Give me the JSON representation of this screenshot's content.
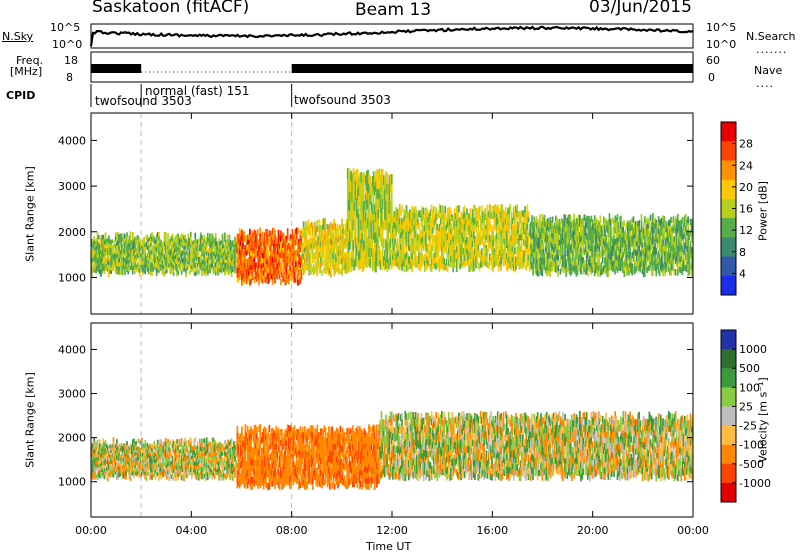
{
  "header": {
    "station": "Saskatoon (fitACF)",
    "beam": "Beam 13",
    "date": "03/Jun/2015"
  },
  "summary_panel": {
    "nsky_label": "N.Sky",
    "nsky_ticks": [
      "10^5",
      "10^0"
    ],
    "nsearch_label": "N.Search",
    "nsearch_ticks": [
      "10^5",
      "10^0"
    ],
    "freq_label_line1": "Freq.",
    "freq_label_line2": "[MHz]",
    "freq_ticks": [
      "18",
      "8"
    ],
    "nave_label": "Nave",
    "nave_ticks": [
      "60",
      "0"
    ],
    "cpid_label": "CPID",
    "cpid_segments": [
      {
        "name": "twofsound 3503",
        "start_hour": 0,
        "end_hour": 2
      },
      {
        "name": "normal (fast) 151",
        "start_hour": 2,
        "end_hour": 8
      },
      {
        "name": "twofsound 3503",
        "start_hour": 8,
        "end_hour": 24
      }
    ]
  },
  "power_panel": {
    "ylabel": "Slant Range [km]",
    "colorbar_label": "Power [dB]",
    "colorbar_ticks": [
      "28",
      "24",
      "20",
      "16",
      "12",
      "8",
      "4"
    ],
    "colorbar_colors": [
      "#e80000",
      "#ff4400",
      "#ff9000",
      "#ffc800",
      "#b8d01c",
      "#58ae46",
      "#3c8a6e",
      "#2e5aa8",
      "#1a2ee8"
    ]
  },
  "velocity_panel": {
    "ylabel": "Slant Range [km]",
    "colorbar_label": "Velocity [m s⁻¹]",
    "colorbar_ticks": [
      "1000",
      "500",
      "100",
      "25",
      "-25",
      "-100",
      "-500",
      "-1000"
    ],
    "colorbar_colors": [
      "#2233aa",
      "#2e6e2e",
      "#3c9a3c",
      "#88cc44",
      "#bdbdbd",
      "#ffbb44",
      "#ff8800",
      "#ff4400",
      "#e00000"
    ]
  },
  "chart_data": {
    "type": "heatmap",
    "title": "Saskatoon (fitACF)  Beam 13  03/Jun/2015",
    "xlabel": "Time UT",
    "ylabel": "Slant Range [km]",
    "x_ticks": [
      "00:00",
      "04:00",
      "08:00",
      "12:00",
      "16:00",
      "20:00",
      "00:00"
    ],
    "y_ticks": [
      "1000",
      "2000",
      "3000",
      "4000"
    ],
    "xlim_hours": [
      0,
      24
    ],
    "ylim_km": [
      200,
      4600
    ],
    "grid": false,
    "mode_boundaries_hours": [
      2,
      8
    ],
    "series": [
      {
        "name": "Power [dB]",
        "echo_bands": [
          {
            "start_hour": 0.0,
            "end_hour": 5.8,
            "range_km": [
              1100,
              1900
            ],
            "value": 14
          },
          {
            "start_hour": 5.8,
            "end_hour": 8.4,
            "range_km": [
              900,
              2000
            ],
            "value": 26
          },
          {
            "start_hour": 8.4,
            "end_hour": 10.2,
            "range_km": [
              1100,
              2200
            ],
            "value": 18
          },
          {
            "start_hour": 10.2,
            "end_hour": 12.0,
            "range_km": [
              1200,
              3300
            ],
            "value": 16
          },
          {
            "start_hour": 12.0,
            "end_hour": 17.5,
            "range_km": [
              1200,
              2500
            ],
            "value": 17
          },
          {
            "start_hour": 17.5,
            "end_hour": 24.0,
            "range_km": [
              1100,
              2300
            ],
            "value": 13
          }
        ]
      },
      {
        "name": "Velocity [m s-1]",
        "echo_bands": [
          {
            "start_hour": 0.0,
            "end_hour": 5.8,
            "range_km": [
              1100,
              1900
            ],
            "value": 0
          },
          {
            "start_hour": 5.8,
            "end_hour": 11.5,
            "range_km": [
              900,
              2200
            ],
            "value": -400
          },
          {
            "start_hour": 11.5,
            "end_hour": 24.0,
            "range_km": [
              1100,
              2500
            ],
            "value": 0
          }
        ]
      }
    ]
  }
}
